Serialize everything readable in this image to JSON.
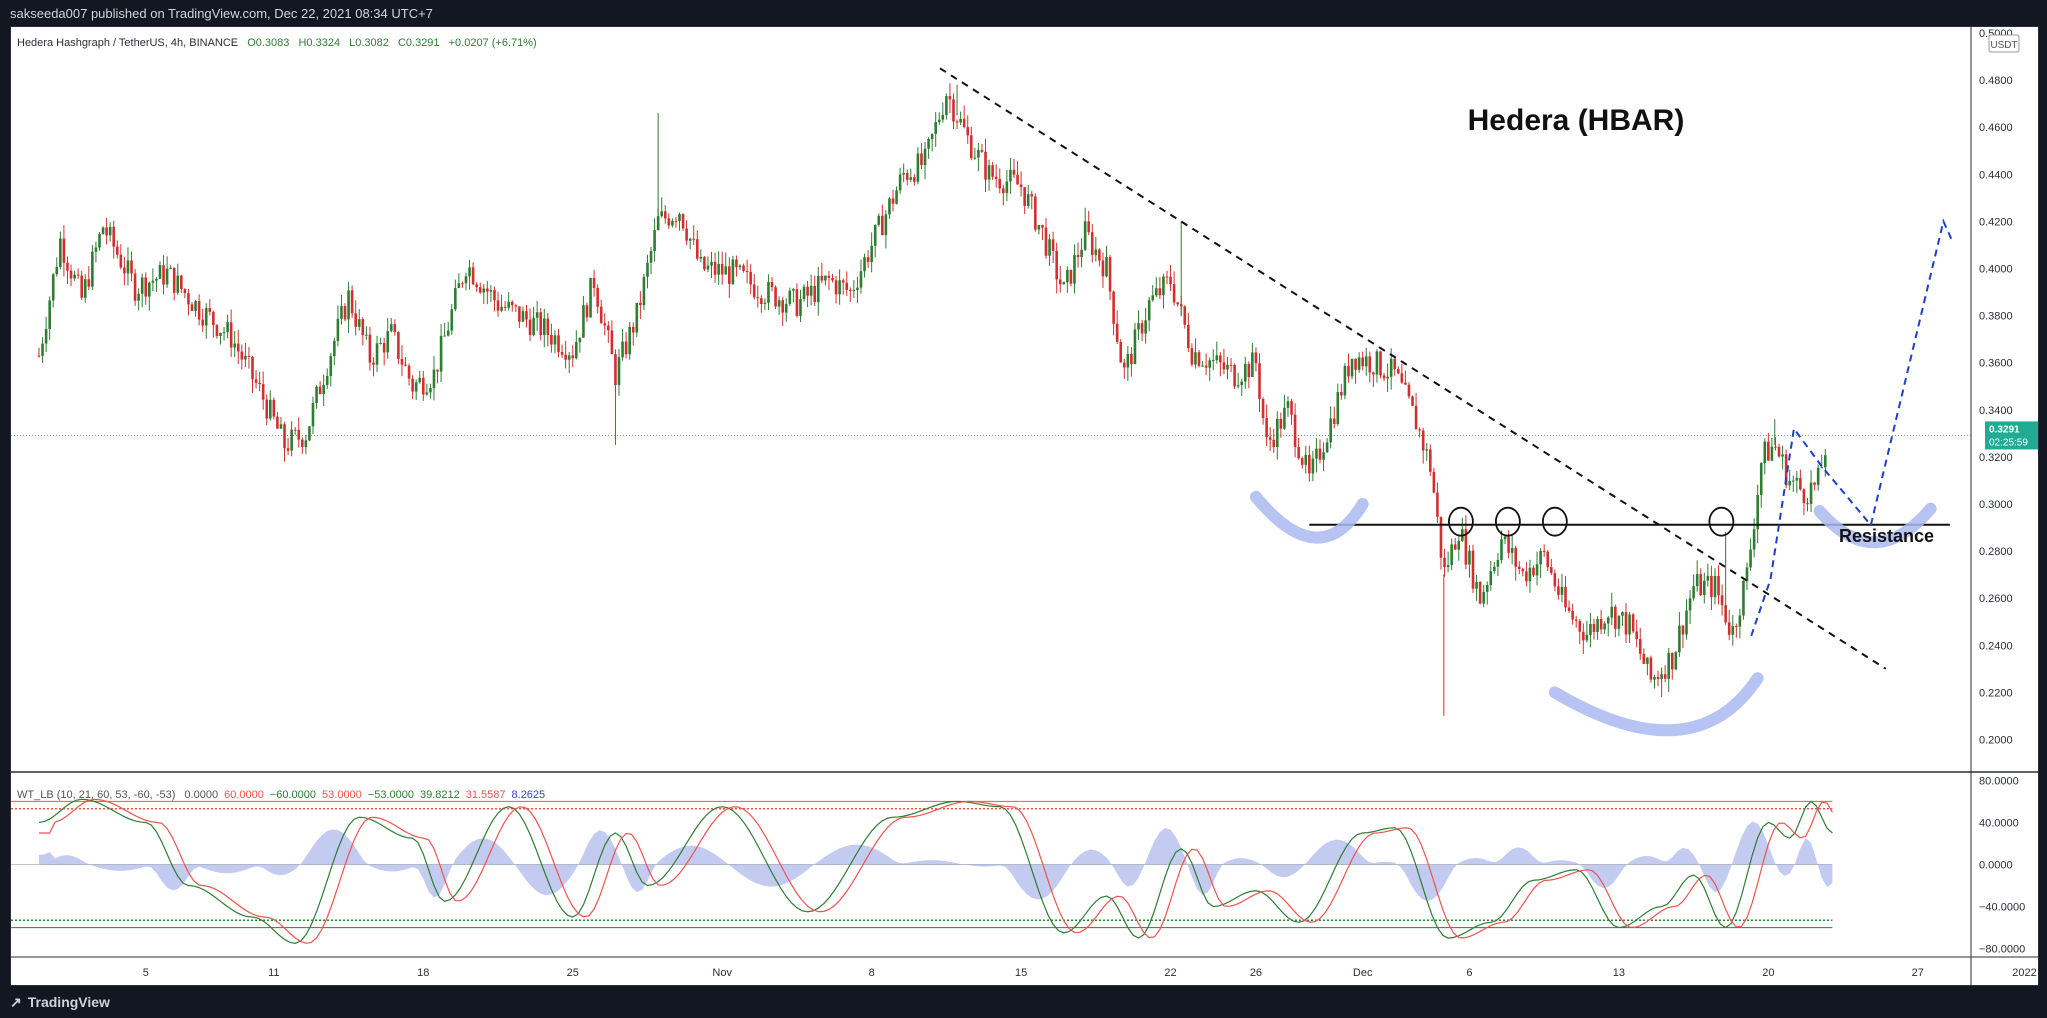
{
  "header": {
    "published": "sakseeda007 published on TradingView.com, Dec 22, 2021 08:34 UTC+7"
  },
  "footer": {
    "brand": "TradingView",
    "logo_icon": "tradingview-logo-icon"
  },
  "colors": {
    "up": "#26a69a",
    "down": "#ef5350",
    "candle_up": "#2e7d32",
    "candle_down": "#d32f2f",
    "accent": "#22ab94",
    "highlight": "#7b8cde"
  },
  "chart_data": [
    {
      "type": "candlestick",
      "symbol_line": {
        "name": "Hedera Hashgraph / TetherUS, 4h, BINANCE",
        "open": "O0.3083",
        "high": "H0.3324",
        "low": "L0.3082",
        "close": "C0.3291",
        "change": "+0.0207 (+6.71%)"
      },
      "annotation_title": "Hedera (HBAR)",
      "resistance_label": "Resistance",
      "resistance_level": 0.2912,
      "last_price": "0.3291",
      "countdown": "02:25:59",
      "currency": "USDT",
      "ylim": [
        0.19,
        0.5
      ],
      "y_ticks": [
        {
          "v": 0.5,
          "label": "0.5000"
        },
        {
          "v": 0.48,
          "label": "0.4800"
        },
        {
          "v": 0.46,
          "label": "0.4600"
        },
        {
          "v": 0.44,
          "label": "0.4400"
        },
        {
          "v": 0.42,
          "label": "0.4200"
        },
        {
          "v": 0.4,
          "label": "0.4000"
        },
        {
          "v": 0.38,
          "label": "0.3800"
        },
        {
          "v": 0.36,
          "label": "0.3600"
        },
        {
          "v": 0.34,
          "label": "0.3400"
        },
        {
          "v": 0.32,
          "label": "0.3200"
        },
        {
          "v": 0.3,
          "label": "0.3000"
        },
        {
          "v": 0.28,
          "label": "0.2800"
        },
        {
          "v": 0.26,
          "label": "0.2600"
        },
        {
          "v": 0.24,
          "label": "0.2400"
        },
        {
          "v": 0.22,
          "label": "0.2200"
        },
        {
          "v": 0.2,
          "label": "0.2000"
        }
      ],
      "x_ticks": [
        "5",
        "11",
        "18",
        "25",
        "Nov",
        "8",
        "15",
        "22",
        "26",
        "Dec",
        "6",
        "13",
        "20",
        "27",
        "2022"
      ],
      "x_tick_days": [
        5,
        11,
        18,
        25,
        32,
        39,
        46,
        53,
        57,
        62,
        67,
        74,
        81,
        88,
        93
      ],
      "price_path": [
        {
          "d": 0.0,
          "p": 0.363
        },
        {
          "d": 1.0,
          "p": 0.412
        },
        {
          "d": 2.0,
          "p": 0.387
        },
        {
          "d": 3.0,
          "p": 0.418
        },
        {
          "d": 4.5,
          "p": 0.392
        },
        {
          "d": 6.0,
          "p": 0.398
        },
        {
          "d": 7.5,
          "p": 0.383
        },
        {
          "d": 9.0,
          "p": 0.371
        },
        {
          "d": 10.5,
          "p": 0.345
        },
        {
          "d": 11.5,
          "p": 0.325
        },
        {
          "d": 12.5,
          "p": 0.33
        },
        {
          "d": 13.5,
          "p": 0.36
        },
        {
          "d": 14.5,
          "p": 0.388
        },
        {
          "d": 15.5,
          "p": 0.362
        },
        {
          "d": 16.5,
          "p": 0.372
        },
        {
          "d": 17.5,
          "p": 0.35
        },
        {
          "d": 18.5,
          "p": 0.355
        },
        {
          "d": 20.0,
          "p": 0.402
        },
        {
          "d": 21.5,
          "p": 0.385
        },
        {
          "d": 22.5,
          "p": 0.38
        },
        {
          "d": 23.5,
          "p": 0.375
        },
        {
          "d": 25.0,
          "p": 0.365
        },
        {
          "d": 26.0,
          "p": 0.395
        },
        {
          "d": 27.0,
          "p": 0.355
        },
        {
          "d": 28.0,
          "p": 0.38
        },
        {
          "d": 29.0,
          "p": 0.42
        },
        {
          "d": 30.0,
          "p": 0.425
        },
        {
          "d": 31.0,
          "p": 0.4
        },
        {
          "d": 32.5,
          "p": 0.398
        },
        {
          "d": 34.0,
          "p": 0.39
        },
        {
          "d": 35.5,
          "p": 0.385
        },
        {
          "d": 37.0,
          "p": 0.395
        },
        {
          "d": 38.0,
          "p": 0.39
        },
        {
          "d": 39.5,
          "p": 0.42
        },
        {
          "d": 40.5,
          "p": 0.44
        },
        {
          "d": 41.5,
          "p": 0.445
        },
        {
          "d": 42.5,
          "p": 0.475
        },
        {
          "d": 43.5,
          "p": 0.455
        },
        {
          "d": 44.5,
          "p": 0.44
        },
        {
          "d": 46.0,
          "p": 0.435
        },
        {
          "d": 47.0,
          "p": 0.415
        },
        {
          "d": 48.0,
          "p": 0.39
        },
        {
          "d": 49.0,
          "p": 0.415
        },
        {
          "d": 50.0,
          "p": 0.4
        },
        {
          "d": 50.8,
          "p": 0.355
        },
        {
          "d": 52.0,
          "p": 0.385
        },
        {
          "d": 53.0,
          "p": 0.395
        },
        {
          "d": 54.0,
          "p": 0.365
        },
        {
          "d": 55.0,
          "p": 0.36
        },
        {
          "d": 56.0,
          "p": 0.355
        },
        {
          "d": 57.0,
          "p": 0.36
        },
        {
          "d": 57.5,
          "p": 0.325
        },
        {
          "d": 58.5,
          "p": 0.34
        },
        {
          "d": 59.5,
          "p": 0.31
        },
        {
          "d": 60.5,
          "p": 0.335
        },
        {
          "d": 61.5,
          "p": 0.363
        },
        {
          "d": 62.5,
          "p": 0.36
        },
        {
          "d": 63.5,
          "p": 0.355
        },
        {
          "d": 64.5,
          "p": 0.335
        },
        {
          "d": 65.2,
          "p": 0.315
        },
        {
          "d": 65.8,
          "p": 0.27
        },
        {
          "d": 66.5,
          "p": 0.29
        },
        {
          "d": 67.5,
          "p": 0.26
        },
        {
          "d": 68.5,
          "p": 0.285
        },
        {
          "d": 69.5,
          "p": 0.27
        },
        {
          "d": 70.5,
          "p": 0.278
        },
        {
          "d": 71.5,
          "p": 0.255
        },
        {
          "d": 72.5,
          "p": 0.245
        },
        {
          "d": 73.5,
          "p": 0.255
        },
        {
          "d": 74.5,
          "p": 0.248
        },
        {
          "d": 75.5,
          "p": 0.225
        },
        {
          "d": 76.5,
          "p": 0.235
        },
        {
          "d": 77.5,
          "p": 0.265
        },
        {
          "d": 78.5,
          "p": 0.265
        },
        {
          "d": 79.3,
          "p": 0.245
        },
        {
          "d": 80.0,
          "p": 0.27
        },
        {
          "d": 80.7,
          "p": 0.32
        },
        {
          "d": 81.3,
          "p": 0.325
        },
        {
          "d": 82.0,
          "p": 0.31
        },
        {
          "d": 82.7,
          "p": 0.305
        },
        {
          "d": 83.3,
          "p": 0.308
        },
        {
          "d": 83.8,
          "p": 0.3291
        }
      ],
      "wicks": [
        {
          "d": 11.5,
          "p": 0.318
        },
        {
          "d": 27.0,
          "p": 0.325
        },
        {
          "d": 29.0,
          "p": 0.466
        },
        {
          "d": 43.0,
          "p": 0.478
        },
        {
          "d": 53.5,
          "p": 0.42
        },
        {
          "d": 65.8,
          "p": 0.21
        },
        {
          "d": 76.0,
          "p": 0.218
        },
        {
          "d": 79.0,
          "p": 0.288
        },
        {
          "d": 81.3,
          "p": 0.336
        }
      ],
      "oscillator": {
        "label": "WT_LB (10, 21, 60, 53, -60, -53)",
        "values": [
          "0.0000",
          "60.0000",
          "−60.0000",
          "53.0000",
          "−53.0000",
          "39.8212",
          "31.5587",
          "8.2625"
        ],
        "value_colors": [
          "#555555",
          "#ef5350",
          "#2e7d32",
          "#ef5350",
          "#2e7d32",
          "#2e7d32",
          "#ef5350",
          "#3344cc"
        ],
        "ylim": [
          -88,
          88
        ],
        "y_ticks": [
          {
            "v": 80,
            "label": "80.0000"
          },
          {
            "v": 40,
            "label": "40.0000"
          },
          {
            "v": 0,
            "label": "0.0000"
          },
          {
            "v": -40,
            "label": "−40.0000"
          },
          {
            "v": -80,
            "label": "−80.0000"
          }
        ],
        "levels": {
          "ob1": 60,
          "ob2": 53,
          "os1": -60,
          "os2": -53
        },
        "wt_peaks": [
          {
            "d": 0,
            "v": 40
          },
          {
            "d": 2,
            "v": 62
          },
          {
            "d": 5,
            "v": 40
          },
          {
            "d": 7,
            "v": -20
          },
          {
            "d": 10,
            "v": -50
          },
          {
            "d": 12,
            "v": -75
          },
          {
            "d": 15,
            "v": 45
          },
          {
            "d": 17.5,
            "v": 25
          },
          {
            "d": 19,
            "v": -35
          },
          {
            "d": 22,
            "v": 55
          },
          {
            "d": 25,
            "v": -50
          },
          {
            "d": 27,
            "v": 30
          },
          {
            "d": 28.5,
            "v": -20
          },
          {
            "d": 32,
            "v": 55
          },
          {
            "d": 36,
            "v": -45
          },
          {
            "d": 40,
            "v": 45
          },
          {
            "d": 43,
            "v": 60
          },
          {
            "d": 45,
            "v": 55
          },
          {
            "d": 48,
            "v": -65
          },
          {
            "d": 50,
            "v": -30
          },
          {
            "d": 51.5,
            "v": -70
          },
          {
            "d": 53.5,
            "v": 15
          },
          {
            "d": 55,
            "v": -40
          },
          {
            "d": 57,
            "v": -25
          },
          {
            "d": 59,
            "v": -55
          },
          {
            "d": 62,
            "v": 30
          },
          {
            "d": 63.5,
            "v": 35
          },
          {
            "d": 66,
            "v": -70
          },
          {
            "d": 68,
            "v": -55
          },
          {
            "d": 70,
            "v": -15
          },
          {
            "d": 72,
            "v": -5
          },
          {
            "d": 74,
            "v": -60
          },
          {
            "d": 76,
            "v": -40
          },
          {
            "d": 77.5,
            "v": -10
          },
          {
            "d": 79,
            "v": -60
          },
          {
            "d": 81,
            "v": 40
          },
          {
            "d": 82,
            "v": 25
          },
          {
            "d": 83,
            "v": 60
          },
          {
            "d": 84,
            "v": 30
          }
        ]
      }
    }
  ]
}
